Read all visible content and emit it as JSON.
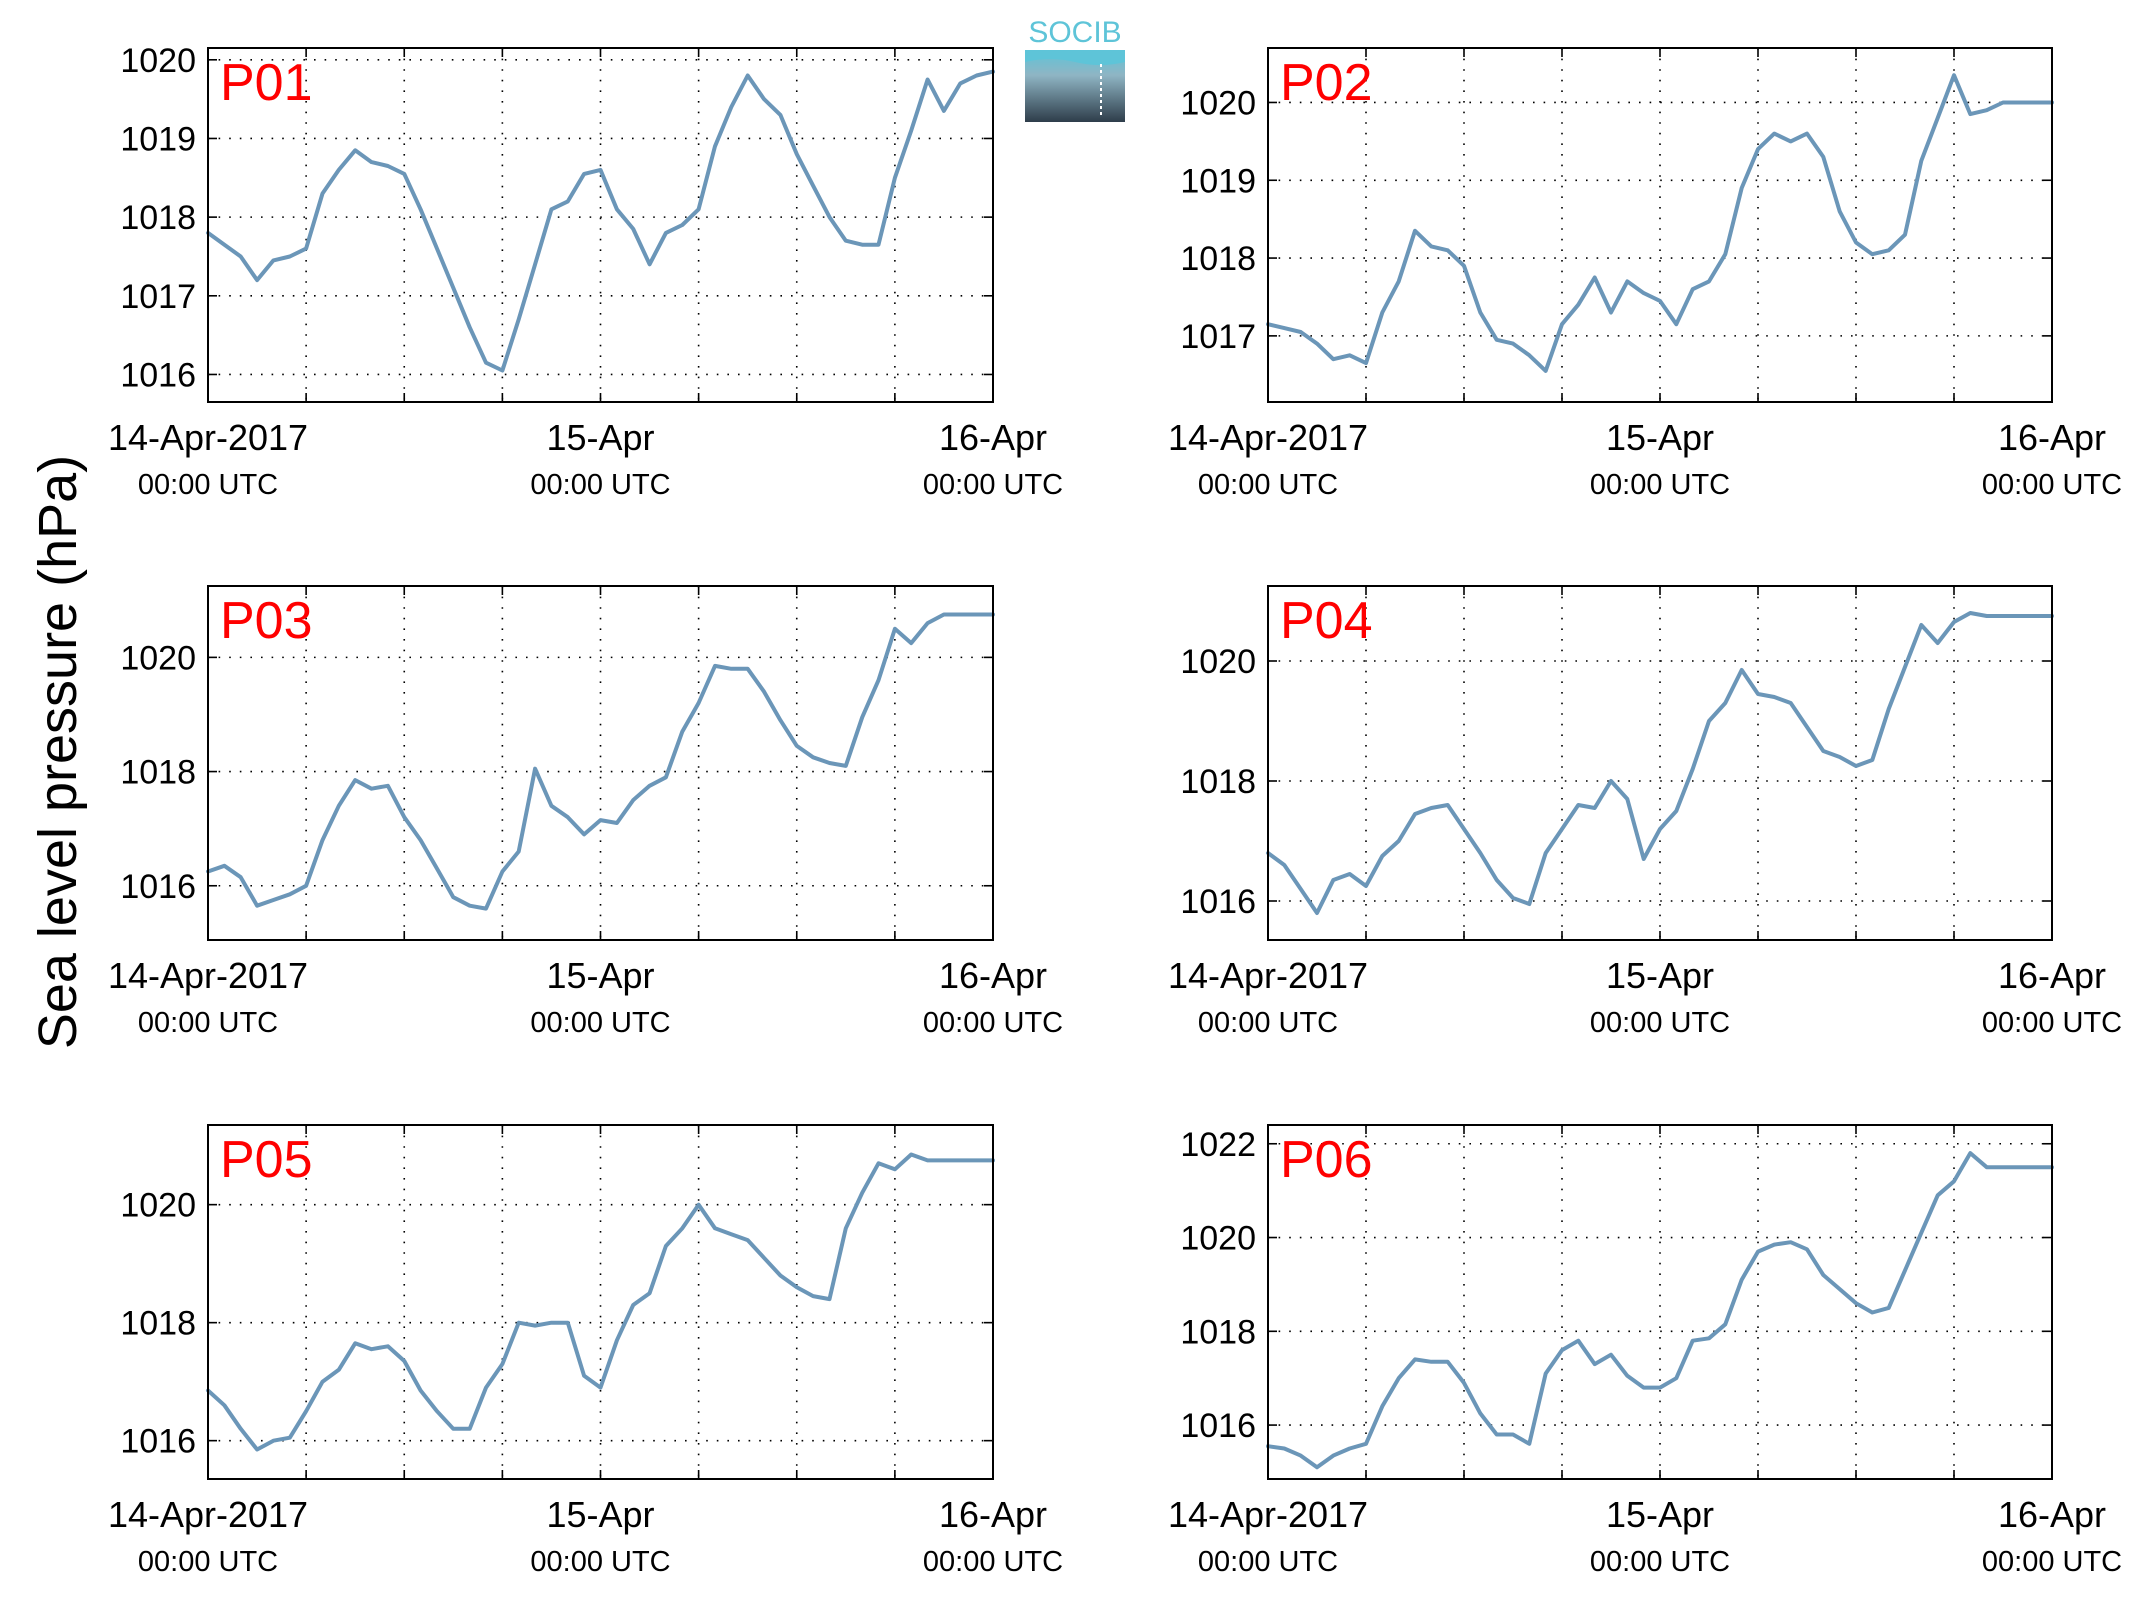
{
  "figure": {
    "ylabel": "Sea level pressure (hPa)",
    "logo_text": "SOCIB",
    "colors": {
      "line": "#6b96b8",
      "panel_label": "#ff0000",
      "grid": "#000000"
    }
  },
  "chart_data": [
    {
      "type": "line",
      "title": "P01",
      "xlabel": "",
      "ylabel": "Sea level pressure (hPa)",
      "xlim": [
        0,
        48
      ],
      "ylim": [
        1015.65,
        1020.15
      ],
      "yticks": [
        1016,
        1017,
        1018,
        1019,
        1020
      ],
      "xticks": [
        {
          "t": 0,
          "line1": "14-Apr-2017",
          "line2": "00:00 UTC"
        },
        {
          "t": 24,
          "line1": "15-Apr",
          "line2": "00:00 UTC"
        },
        {
          "t": 48,
          "line1": "16-Apr",
          "line2": "00:00 UTC"
        }
      ],
      "grid": true,
      "series": [
        {
          "x": [
            0,
            1,
            2,
            3,
            4,
            5,
            6,
            7,
            8,
            9,
            10,
            11,
            12,
            13,
            14,
            15,
            16,
            17,
            18,
            19,
            20,
            21,
            22,
            23,
            24,
            25,
            26,
            27,
            28,
            29,
            30,
            31,
            32,
            33,
            34,
            35,
            36,
            37,
            38,
            39,
            40,
            41,
            42,
            43,
            44,
            45,
            46,
            47,
            48
          ],
          "values": [
            1017.8,
            1017.65,
            1017.5,
            1017.2,
            1017.45,
            1017.5,
            1017.6,
            1018.3,
            1018.6,
            1018.85,
            1018.7,
            1018.65,
            1018.55,
            1018.1,
            1017.6,
            1017.1,
            1016.6,
            1016.15,
            1016.05,
            1016.7,
            1017.4,
            1018.1,
            1018.2,
            1018.55,
            1018.6,
            1018.1,
            1017.85,
            1017.4,
            1017.8,
            1017.9,
            1018.1,
            1018.9,
            1019.4,
            1019.8,
            1019.5,
            1019.3,
            1018.8,
            1018.4,
            1018.0,
            1017.7,
            1017.65,
            1017.65,
            1018.5,
            1019.1,
            1019.75,
            1019.35,
            1019.7,
            1019.8,
            1019.85
          ]
        }
      ]
    },
    {
      "type": "line",
      "title": "P02",
      "xlabel": "",
      "ylabel": "Sea level pressure (hPa)",
      "xlim": [
        0,
        48
      ],
      "ylim": [
        1016.15,
        1020.7
      ],
      "yticks": [
        1017,
        1018,
        1019,
        1020
      ],
      "xticks": [
        {
          "t": 0,
          "line1": "14-Apr-2017",
          "line2": "00:00 UTC"
        },
        {
          "t": 24,
          "line1": "15-Apr",
          "line2": "00:00 UTC"
        },
        {
          "t": 48,
          "line1": "16-Apr",
          "line2": "00:00 UTC"
        }
      ],
      "grid": true,
      "series": [
        {
          "x": [
            0,
            1,
            2,
            3,
            4,
            5,
            6,
            7,
            8,
            9,
            10,
            11,
            12,
            13,
            14,
            15,
            16,
            17,
            18,
            19,
            20,
            21,
            22,
            23,
            24,
            25,
            26,
            27,
            28,
            29,
            30,
            31,
            32,
            33,
            34,
            35,
            36,
            37,
            38,
            39,
            40,
            41,
            42,
            43,
            44,
            45,
            46,
            47,
            48
          ],
          "values": [
            1017.15,
            1017.1,
            1017.05,
            1016.9,
            1016.7,
            1016.75,
            1016.65,
            1017.3,
            1017.7,
            1018.35,
            1018.15,
            1018.1,
            1017.9,
            1017.3,
            1016.95,
            1016.9,
            1016.75,
            1016.55,
            1017.15,
            1017.4,
            1017.75,
            1017.3,
            1017.7,
            1017.55,
            1017.45,
            1017.15,
            1017.6,
            1017.7,
            1018.05,
            1018.9,
            1019.4,
            1019.6,
            1019.5,
            1019.6,
            1019.3,
            1018.6,
            1018.2,
            1018.05,
            1018.1,
            1018.3,
            1019.25,
            1019.8,
            1020.35,
            1019.85,
            1019.9,
            1020.0,
            1020.0,
            1020.0,
            1020.0
          ]
        }
      ]
    },
    {
      "type": "line",
      "title": "P03",
      "xlabel": "",
      "ylabel": "Sea level pressure (hPa)",
      "xlim": [
        0,
        48
      ],
      "ylim": [
        1015.05,
        1021.25
      ],
      "yticks": [
        1016,
        1018,
        1020
      ],
      "xticks": [
        {
          "t": 0,
          "line1": "14-Apr-2017",
          "line2": "00:00 UTC"
        },
        {
          "t": 24,
          "line1": "15-Apr",
          "line2": "00:00 UTC"
        },
        {
          "t": 48,
          "line1": "16-Apr",
          "line2": "00:00 UTC"
        }
      ],
      "grid": true,
      "series": [
        {
          "x": [
            0,
            1,
            2,
            3,
            4,
            5,
            6,
            7,
            8,
            9,
            10,
            11,
            12,
            13,
            14,
            15,
            16,
            17,
            18,
            19,
            20,
            21,
            22,
            23,
            24,
            25,
            26,
            27,
            28,
            29,
            30,
            31,
            32,
            33,
            34,
            35,
            36,
            37,
            38,
            39,
            40,
            41,
            42,
            43,
            44,
            45,
            46,
            47,
            48
          ],
          "values": [
            1016.25,
            1016.35,
            1016.15,
            1015.65,
            1015.75,
            1015.85,
            1016.0,
            1016.8,
            1017.4,
            1017.85,
            1017.7,
            1017.75,
            1017.2,
            1016.8,
            1016.3,
            1015.8,
            1015.65,
            1015.6,
            1016.25,
            1016.6,
            1018.05,
            1017.4,
            1017.2,
            1016.9,
            1017.15,
            1017.1,
            1017.5,
            1017.75,
            1017.9,
            1018.7,
            1019.2,
            1019.85,
            1019.8,
            1019.8,
            1019.4,
            1018.9,
            1018.45,
            1018.25,
            1018.15,
            1018.1,
            1018.95,
            1019.6,
            1020.5,
            1020.25,
            1020.6,
            1020.75,
            1020.75,
            1020.75,
            1020.75
          ]
        }
      ]
    },
    {
      "type": "line",
      "title": "P04",
      "xlabel": "",
      "ylabel": "Sea level pressure (hPa)",
      "xlim": [
        0,
        48
      ],
      "ylim": [
        1015.35,
        1021.25
      ],
      "yticks": [
        1016,
        1018,
        1020
      ],
      "xticks": [
        {
          "t": 0,
          "line1": "14-Apr-2017",
          "line2": "00:00 UTC"
        },
        {
          "t": 24,
          "line1": "15-Apr",
          "line2": "00:00 UTC"
        },
        {
          "t": 48,
          "line1": "16-Apr",
          "line2": "00:00 UTC"
        }
      ],
      "grid": true,
      "series": [
        {
          "x": [
            0,
            1,
            2,
            3,
            4,
            5,
            6,
            7,
            8,
            9,
            10,
            11,
            12,
            13,
            14,
            15,
            16,
            17,
            18,
            19,
            20,
            21,
            22,
            23,
            24,
            25,
            26,
            27,
            28,
            29,
            30,
            31,
            32,
            33,
            34,
            35,
            36,
            37,
            38,
            39,
            40,
            41,
            42,
            43,
            44,
            45,
            46,
            47,
            48
          ],
          "values": [
            1016.8,
            1016.6,
            1016.2,
            1015.8,
            1016.35,
            1016.45,
            1016.25,
            1016.75,
            1017.0,
            1017.45,
            1017.55,
            1017.6,
            1017.2,
            1016.8,
            1016.35,
            1016.05,
            1015.95,
            1016.8,
            1017.2,
            1017.6,
            1017.55,
            1018.0,
            1017.7,
            1016.7,
            1017.2,
            1017.5,
            1018.2,
            1019.0,
            1019.3,
            1019.85,
            1019.45,
            1019.4,
            1019.3,
            1018.9,
            1018.5,
            1018.4,
            1018.25,
            1018.35,
            1019.2,
            1019.9,
            1020.6,
            1020.3,
            1020.65,
            1020.8,
            1020.75,
            1020.75,
            1020.75,
            1020.75,
            1020.75
          ]
        }
      ]
    },
    {
      "type": "line",
      "title": "P05",
      "xlabel": "",
      "ylabel": "Sea level pressure (hPa)",
      "xlim": [
        0,
        48
      ],
      "ylim": [
        1015.35,
        1021.35
      ],
      "yticks": [
        1016,
        1018,
        1020
      ],
      "xticks": [
        {
          "t": 0,
          "line1": "14-Apr-2017",
          "line2": "00:00 UTC"
        },
        {
          "t": 24,
          "line1": "15-Apr",
          "line2": "00:00 UTC"
        },
        {
          "t": 48,
          "line1": "16-Apr",
          "line2": "00:00 UTC"
        }
      ],
      "grid": true,
      "series": [
        {
          "x": [
            0,
            1,
            2,
            3,
            4,
            5,
            6,
            7,
            8,
            9,
            10,
            11,
            12,
            13,
            14,
            15,
            16,
            17,
            18,
            19,
            20,
            21,
            22,
            23,
            24,
            25,
            26,
            27,
            28,
            29,
            30,
            31,
            32,
            33,
            34,
            35,
            36,
            37,
            38,
            39,
            40,
            41,
            42,
            43,
            44,
            45,
            46,
            47,
            48
          ],
          "values": [
            1016.85,
            1016.6,
            1016.2,
            1015.85,
            1016.0,
            1016.05,
            1016.5,
            1017.0,
            1017.2,
            1017.65,
            1017.55,
            1017.6,
            1017.35,
            1016.85,
            1016.5,
            1016.2,
            1016.2,
            1016.9,
            1017.3,
            1018.0,
            1017.95,
            1018.0,
            1018.0,
            1017.1,
            1016.9,
            1017.7,
            1018.3,
            1018.5,
            1019.3,
            1019.6,
            1020.0,
            1019.6,
            1019.5,
            1019.4,
            1019.1,
            1018.8,
            1018.6,
            1018.45,
            1018.4,
            1019.6,
            1020.2,
            1020.7,
            1020.6,
            1020.85,
            1020.75,
            1020.75,
            1020.75,
            1020.75,
            1020.75
          ]
        }
      ]
    },
    {
      "type": "line",
      "title": "P06",
      "xlabel": "",
      "ylabel": "Sea level pressure (hPa)",
      "xlim": [
        0,
        48
      ],
      "ylim": [
        1014.85,
        1022.4
      ],
      "yticks": [
        1016,
        1018,
        1020,
        1022
      ],
      "xticks": [
        {
          "t": 0,
          "line1": "14-Apr-2017",
          "line2": "00:00 UTC"
        },
        {
          "t": 24,
          "line1": "15-Apr",
          "line2": "00:00 UTC"
        },
        {
          "t": 48,
          "line1": "16-Apr",
          "line2": "00:00 UTC"
        }
      ],
      "grid": true,
      "series": [
        {
          "x": [
            0,
            1,
            2,
            3,
            4,
            5,
            6,
            7,
            8,
            9,
            10,
            11,
            12,
            13,
            14,
            15,
            16,
            17,
            18,
            19,
            20,
            21,
            22,
            23,
            24,
            25,
            26,
            27,
            28,
            29,
            30,
            31,
            32,
            33,
            34,
            35,
            36,
            37,
            38,
            39,
            40,
            41,
            42,
            43,
            44,
            45,
            46,
            47,
            48
          ],
          "values": [
            1015.55,
            1015.5,
            1015.35,
            1015.1,
            1015.35,
            1015.5,
            1015.6,
            1016.4,
            1017.0,
            1017.4,
            1017.35,
            1017.35,
            1016.9,
            1016.25,
            1015.8,
            1015.8,
            1015.6,
            1017.1,
            1017.6,
            1017.8,
            1017.3,
            1017.5,
            1017.05,
            1016.8,
            1016.8,
            1017.0,
            1017.8,
            1017.85,
            1018.15,
            1019.1,
            1019.7,
            1019.85,
            1019.9,
            1019.75,
            1019.2,
            1018.9,
            1018.6,
            1018.4,
            1018.5,
            1019.3,
            1020.1,
            1020.9,
            1021.2,
            1021.8,
            1021.5,
            1021.5,
            1021.5,
            1021.5,
            1021.5
          ]
        }
      ]
    }
  ]
}
